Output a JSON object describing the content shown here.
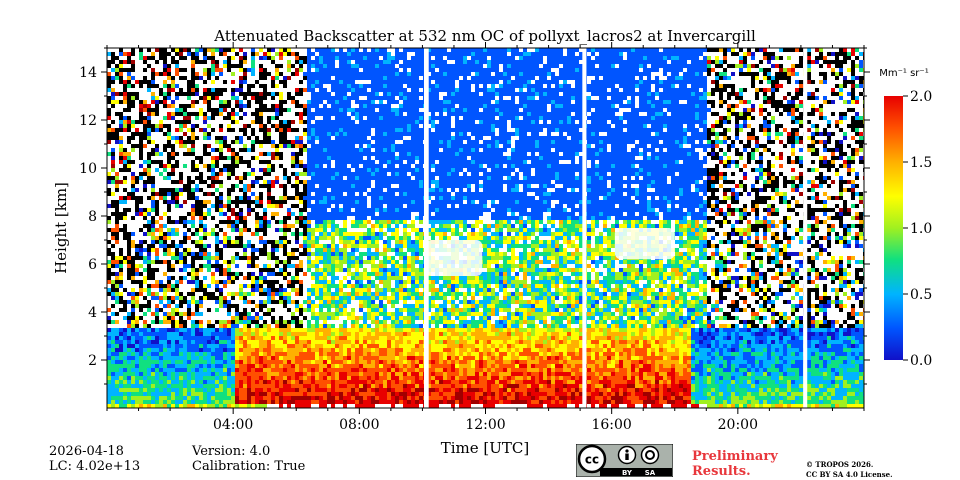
{
  "chart_data": {
    "type": "heatmap",
    "title": "Attenuated Backscatter at 532 nm OC of pollyxt_lacros2 at Invercargill",
    "xlabel": "Time [UTC]",
    "ylabel": "Height [km]",
    "x_range_hours": [
      0,
      24
    ],
    "y_range_km": [
      0,
      15
    ],
    "x_ticks": [
      {
        "h": 4,
        "label": "04:00"
      },
      {
        "h": 8,
        "label": "08:00"
      },
      {
        "h": 12,
        "label": "12:00"
      },
      {
        "h": 16,
        "label": "16:00"
      },
      {
        "h": 20,
        "label": "20:00"
      }
    ],
    "y_ticks": [
      {
        "v": 2,
        "label": "2"
      },
      {
        "v": 4,
        "label": "4"
      },
      {
        "v": 6,
        "label": "6"
      },
      {
        "v": 8,
        "label": "8"
      },
      {
        "v": 10,
        "label": "10"
      },
      {
        "v": 12,
        "label": "12"
      },
      {
        "v": 14,
        "label": "14"
      }
    ],
    "colorbar": {
      "unit": "Mm⁻¹ sr⁻¹",
      "range": [
        0.0,
        2.0
      ],
      "ticks": [
        {
          "v": 0.0,
          "label": "0.0"
        },
        {
          "v": 0.5,
          "label": "0.5"
        },
        {
          "v": 1.0,
          "label": "1.0"
        },
        {
          "v": 1.5,
          "label": "1.5"
        },
        {
          "v": 2.0,
          "label": "2.0"
        }
      ]
    },
    "data_gaps_hours": [
      [
        10.05,
        10.2
      ],
      [
        15.07,
        15.2
      ],
      [
        22.07,
        22.2
      ]
    ],
    "low_level_aerosol_top_km": 3.5,
    "cloud_layers": [
      {
        "start_h": 10.1,
        "end_h": 11.9,
        "base_km": 5.5,
        "top_km": 7.0
      },
      {
        "start_h": 16.1,
        "end_h": 18.0,
        "base_km": 6.2,
        "top_km": 7.5
      }
    ]
  },
  "footer": {
    "date": "2026-04-18",
    "lc": "LC: 4.02e+13",
    "version": "Version: 4.0",
    "calibration": "Calibration: True",
    "preliminary_line1": "Preliminary",
    "preliminary_line2": "Results.",
    "copyright_line1": "© TROPOS 2026.",
    "copyright_line2": "CC BY SA 4.0 License.",
    "license_badge": [
      "cc",
      "BY",
      "SA"
    ]
  },
  "colors": {
    "colormap": [
      "#1010c8",
      "#0055ff",
      "#00b4ff",
      "#10e080",
      "#a0f020",
      "#ffff00",
      "#ffb000",
      "#ff5000",
      "#e80000",
      "#a00000"
    ],
    "prelim": "#e8373c"
  }
}
